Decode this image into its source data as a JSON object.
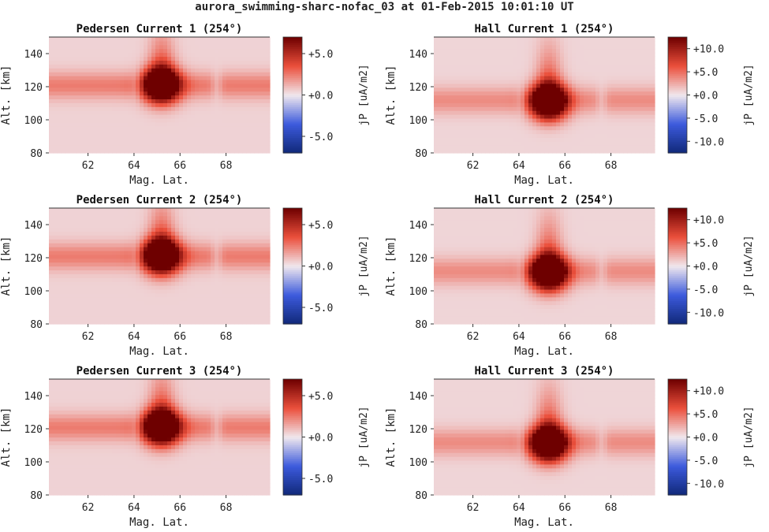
{
  "figure": {
    "suptitle": "aurora_swimming-sharc-nofac_03 at 01-Feb-2015 10:01:10 UT"
  },
  "chart_data": [
    {
      "type": "heatmap",
      "title": "Pedersen Current 1 (254°)",
      "xlabel": "Mag. Lat.",
      "ylabel": "Alt. [km]",
      "xlim": [
        60.3,
        69.9
      ],
      "ylim": [
        80,
        150
      ],
      "xticks": [
        "62",
        "64",
        "66",
        "68"
      ],
      "yticks": [
        "80",
        "100",
        "120",
        "140"
      ],
      "colorbar": {
        "label": "jP [uA/m2]",
        "vmin": -7,
        "vmax": 7,
        "colormap": "seismic",
        "ticks": [
          "-5.0",
          "+0.0",
          "+5.0"
        ]
      },
      "field": {
        "background": 0.5,
        "band_center_alt": 121,
        "band_value": 2.0,
        "blob_lat": 65.2,
        "blob_alt": 121,
        "blob_peak": 7.0,
        "gap_lats": [
          64.1,
          67.6
        ]
      }
    },
    {
      "type": "heatmap",
      "title": "Hall Current 1 (254°)",
      "xlabel": "Mag. Lat.",
      "ylabel": "Alt. [km]",
      "xlim": [
        60.3,
        69.9
      ],
      "ylim": [
        80,
        150
      ],
      "xticks": [
        "62",
        "64",
        "66",
        "68"
      ],
      "yticks": [
        "80",
        "100",
        "120",
        "140"
      ],
      "colorbar": {
        "label": "jP [uA/m2]",
        "vmin": -12.5,
        "vmax": 12.5,
        "colormap": "seismic",
        "ticks": [
          "-10.0",
          "-5.0",
          "+0.0",
          "+5.0",
          "+10.0"
        ]
      },
      "field": {
        "background": 0.8,
        "band_center_alt": 112,
        "band_value": 3.0,
        "blob_lat": 65.3,
        "blob_alt": 111,
        "blob_peak": 13.0,
        "gap_lats": [
          64.1,
          67.6
        ]
      }
    },
    {
      "type": "heatmap",
      "title": "Pedersen Current 2 (254°)",
      "xlabel": "Mag. Lat.",
      "ylabel": "Alt. [km]",
      "xlim": [
        60.3,
        69.9
      ],
      "ylim": [
        80,
        150
      ],
      "xticks": [
        "62",
        "64",
        "66",
        "68"
      ],
      "yticks": [
        "80",
        "100",
        "120",
        "140"
      ],
      "colorbar": {
        "label": "jP [uA/m2]",
        "vmin": -7,
        "vmax": 7,
        "colormap": "seismic",
        "ticks": [
          "-5.0",
          "+0.0",
          "+5.0"
        ]
      },
      "field": {
        "background": 0.5,
        "band_center_alt": 121,
        "band_value": 2.0,
        "blob_lat": 65.2,
        "blob_alt": 121,
        "blob_peak": 7.0,
        "gap_lats": [
          64.1,
          67.6
        ]
      }
    },
    {
      "type": "heatmap",
      "title": "Hall Current 2 (254°)",
      "xlabel": "Mag. Lat.",
      "ylabel": "Alt. [km]",
      "xlim": [
        60.3,
        69.9
      ],
      "ylim": [
        80,
        150
      ],
      "xticks": [
        "62",
        "64",
        "66",
        "68"
      ],
      "yticks": [
        "80",
        "100",
        "120",
        "140"
      ],
      "colorbar": {
        "label": "jP [uA/m2]",
        "vmin": -12.5,
        "vmax": 12.5,
        "colormap": "seismic",
        "ticks": [
          "-10.0",
          "-5.0",
          "+0.0",
          "+5.0",
          "+10.0"
        ]
      },
      "field": {
        "background": 0.8,
        "band_center_alt": 112,
        "band_value": 3.0,
        "blob_lat": 65.3,
        "blob_alt": 111,
        "blob_peak": 13.0,
        "gap_lats": [
          64.1,
          67.6
        ]
      }
    },
    {
      "type": "heatmap",
      "title": "Pedersen Current 3 (254°)",
      "xlabel": "Mag. Lat.",
      "ylabel": "Alt. [km]",
      "xlim": [
        60.3,
        69.9
      ],
      "ylim": [
        80,
        150
      ],
      "xticks": [
        "62",
        "64",
        "66",
        "68"
      ],
      "yticks": [
        "80",
        "100",
        "120",
        "140"
      ],
      "colorbar": {
        "label": "jP [uA/m2]",
        "vmin": -7,
        "vmax": 7,
        "colormap": "seismic",
        "ticks": [
          "-5.0",
          "+0.0",
          "+5.0"
        ]
      },
      "field": {
        "background": 0.5,
        "band_center_alt": 121,
        "band_value": 2.0,
        "blob_lat": 65.2,
        "blob_alt": 121,
        "blob_peak": 7.0,
        "gap_lats": [
          64.1,
          67.6
        ]
      }
    },
    {
      "type": "heatmap",
      "title": "Hall Current 3 (254°)",
      "xlabel": "Mag. Lat.",
      "ylabel": "Alt. [km]",
      "xlim": [
        60.3,
        69.9
      ],
      "ylim": [
        80,
        150
      ],
      "xticks": [
        "62",
        "64",
        "66",
        "68"
      ],
      "yticks": [
        "80",
        "100",
        "120",
        "140"
      ],
      "colorbar": {
        "label": "jP [uA/m2]",
        "vmin": -12.5,
        "vmax": 12.5,
        "colormap": "seismic",
        "ticks": [
          "-10.0",
          "-5.0",
          "+0.0",
          "+5.0",
          "+10.0"
        ]
      },
      "field": {
        "background": 0.8,
        "band_center_alt": 112,
        "band_value": 3.0,
        "blob_lat": 65.3,
        "blob_alt": 111,
        "blob_peak": 13.0,
        "gap_lats": [
          64.1,
          67.6
        ]
      }
    }
  ]
}
